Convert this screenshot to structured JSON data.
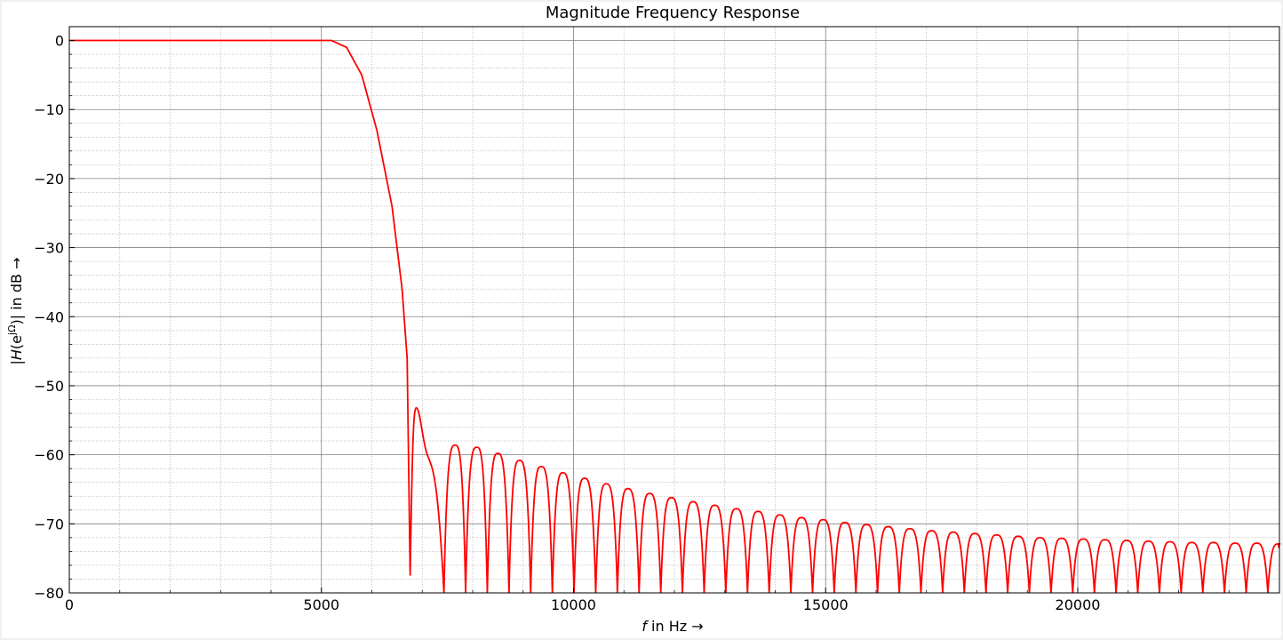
{
  "chart_data": {
    "type": "line",
    "title": "Magnitude Frequency Response",
    "xlabel": {
      "var": "f",
      "rest": " in Hz →"
    },
    "ylabel": {
      "open": "|",
      "var": "H",
      "paren": "(e",
      "sup": "jΩ",
      "close": ")| in dB →"
    },
    "xlim": [
      0,
      24000
    ],
    "ylim": [
      -80,
      2
    ],
    "xticks": [
      0,
      5000,
      10000,
      15000,
      20000
    ],
    "xtick_labels": [
      "0",
      "5000",
      "10000",
      "15000",
      "20000"
    ],
    "yticks": [
      0,
      -10,
      -20,
      -30,
      -40,
      -50,
      -60,
      -70,
      -80
    ],
    "ytick_labels": [
      "0",
      "−10",
      "−20",
      "−30",
      "−40",
      "−50",
      "−60",
      "−70",
      "−80"
    ],
    "grid": {
      "major": true,
      "minor": true
    },
    "line_color": "#ff0000",
    "series": [
      {
        "passband_db": 0,
        "passband_edge_hz": 5200,
        "transition": [
          [
            5200,
            0
          ],
          [
            5500,
            -1
          ],
          [
            5800,
            -5
          ],
          [
            6100,
            -13
          ],
          [
            6400,
            -24
          ],
          [
            6600,
            -36
          ],
          [
            6700,
            -46
          ],
          [
            6760,
            -77.5
          ]
        ],
        "stopband_peaks": [
          [
            6880,
            -53.2
          ],
          [
            7650,
            -58.6
          ],
          [
            8080,
            -58.9
          ],
          [
            8500,
            -59.8
          ],
          [
            8930,
            -60.8
          ],
          [
            9360,
            -61.7
          ],
          [
            9790,
            -62.6
          ],
          [
            10220,
            -63.4
          ],
          [
            10650,
            -64.2
          ],
          [
            11080,
            -64.9
          ],
          [
            11510,
            -65.6
          ],
          [
            11940,
            -66.2
          ],
          [
            12370,
            -66.8
          ],
          [
            12800,
            -67.3
          ],
          [
            13230,
            -67.8
          ],
          [
            13660,
            -68.2
          ],
          [
            14090,
            -68.7
          ],
          [
            14520,
            -69.1
          ],
          [
            14950,
            -69.4
          ],
          [
            15380,
            -69.8
          ],
          [
            15810,
            -70.1
          ],
          [
            16240,
            -70.4
          ],
          [
            16670,
            -70.7
          ],
          [
            17100,
            -71.0
          ],
          [
            17530,
            -71.2
          ],
          [
            17960,
            -71.4
          ],
          [
            18390,
            -71.6
          ],
          [
            18820,
            -71.8
          ],
          [
            19250,
            -72.0
          ],
          [
            19680,
            -72.1
          ],
          [
            20110,
            -72.2
          ],
          [
            20540,
            -72.3
          ],
          [
            20970,
            -72.4
          ],
          [
            21400,
            -72.5
          ],
          [
            21830,
            -72.6
          ],
          [
            22260,
            -72.7
          ],
          [
            22690,
            -72.7
          ],
          [
            23120,
            -72.8
          ],
          [
            23550,
            -72.8
          ],
          [
            23980,
            -72.9
          ]
        ],
        "stopband_nulls_hz": [
          7430,
          7860,
          8290,
          8720,
          9150,
          9580,
          10010,
          10440,
          10870,
          11300,
          11730,
          12160,
          12590,
          13020,
          13450,
          13880,
          14310,
          14740,
          15170,
          15600,
          16030,
          16460,
          16890,
          17320,
          17750,
          18180,
          18610,
          19040,
          19470,
          19900,
          20330,
          20760,
          21190,
          21620,
          22050,
          22480,
          22910,
          23340,
          23770
        ]
      }
    ]
  }
}
